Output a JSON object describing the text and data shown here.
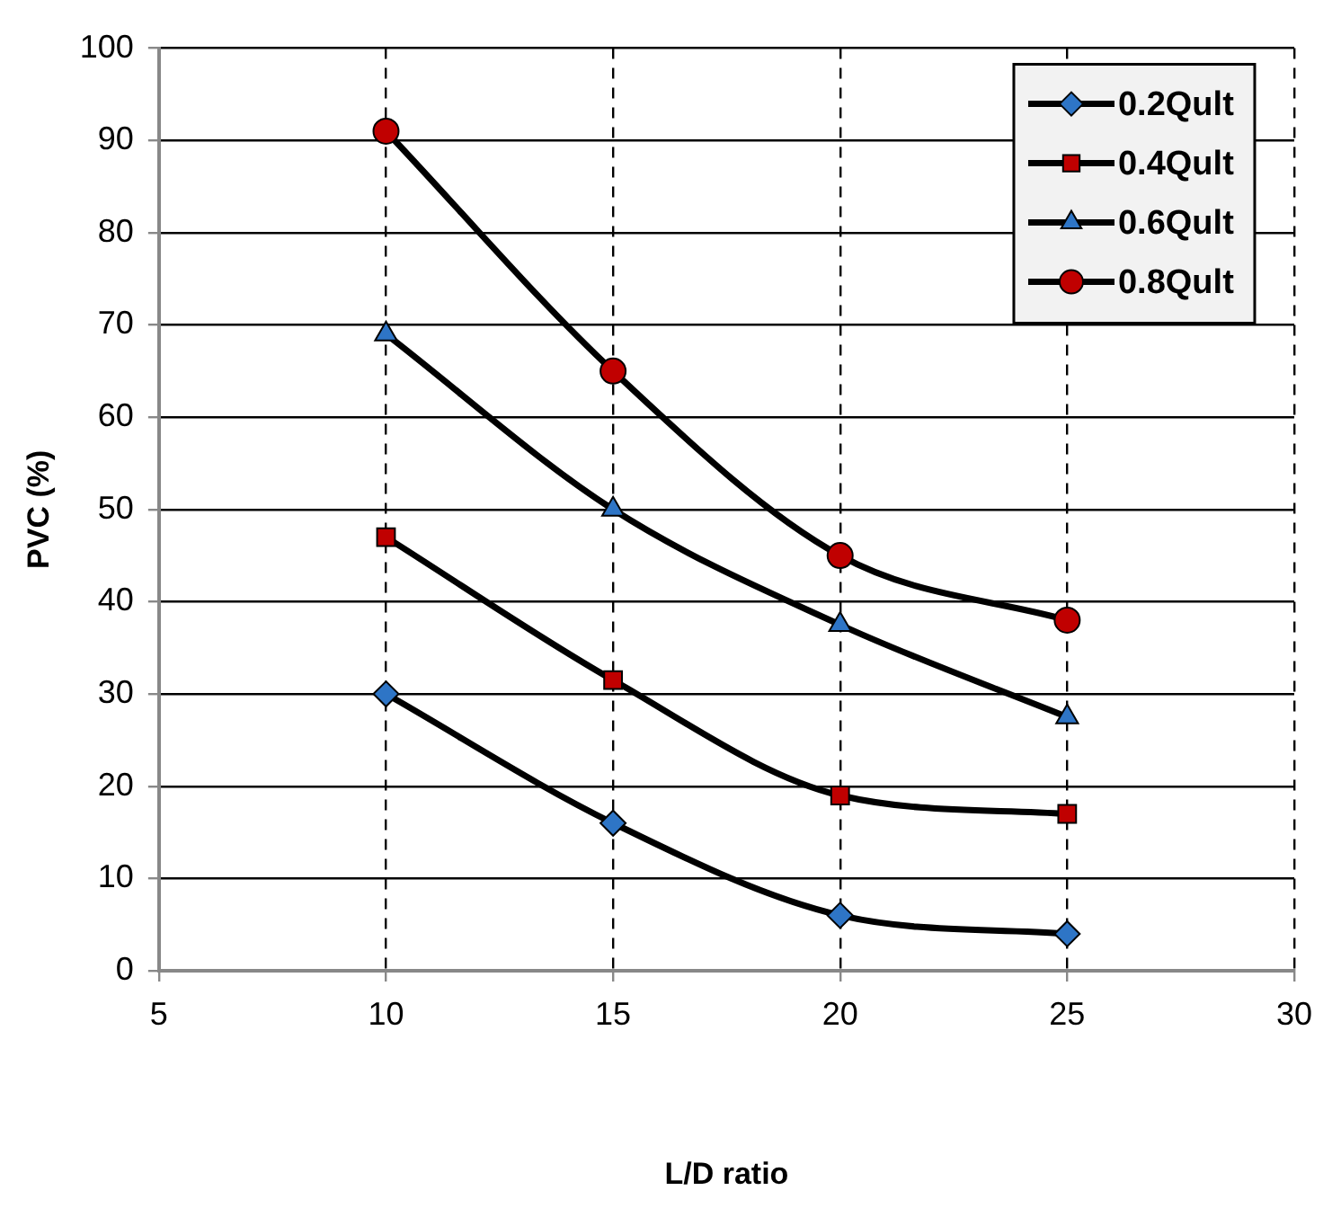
{
  "chart_data": {
    "type": "line",
    "xlabel": "L/D ratio",
    "ylabel": "PVC (%)",
    "x": [
      10,
      15,
      20,
      25
    ],
    "series": [
      {
        "name": "0.2Qult",
        "color": "#2e75c6",
        "marker": "diamond",
        "values": [
          30,
          16,
          6,
          4
        ]
      },
      {
        "name": "0.4Qult",
        "color": "#c00000",
        "marker": "square",
        "values": [
          47,
          31.5,
          19,
          17
        ]
      },
      {
        "name": "0.6Qult",
        "color": "#2e75c6",
        "marker": "triangle",
        "values": [
          69,
          50,
          37.5,
          27.5
        ]
      },
      {
        "name": "0.8Qult",
        "color": "#c00000",
        "marker": "circle",
        "values": [
          91,
          65,
          45,
          38
        ]
      }
    ],
    "xlim": [
      5,
      30
    ],
    "xticks": [
      5,
      10,
      15,
      20,
      25,
      30
    ],
    "ylim": [
      0,
      100
    ],
    "yticks": [
      0,
      10,
      20,
      30,
      40,
      50,
      60,
      70,
      80,
      90,
      100
    ],
    "grid": true,
    "legend": "top right",
    "line_style": "solid"
  }
}
